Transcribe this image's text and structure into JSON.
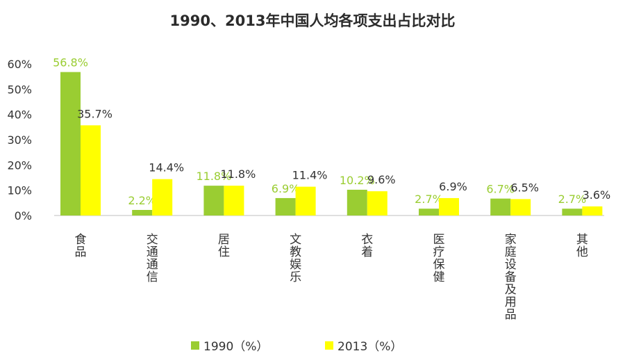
{
  "chart_data": {
    "type": "bar",
    "title": "1990、2013年中国人均各项支出占比对比",
    "categories": [
      "食品",
      "交通通信",
      "居住",
      "文教娱乐",
      "衣着",
      "医疗保健",
      "家庭设备及用品",
      "其他"
    ],
    "series": [
      {
        "name": "1990（%）",
        "color": "#9ACD32",
        "label_color": "#9ACD32",
        "values": [
          56.8,
          2.2,
          11.8,
          6.9,
          10.2,
          2.7,
          6.7,
          2.7
        ],
        "labels": [
          "56.8%",
          "2.2%",
          "11.8%",
          "6.9%",
          "10.2%",
          "2.7%",
          "6.7%",
          "2.7%"
        ]
      },
      {
        "name": "2013（%）",
        "color": "#FFFF00",
        "label_color": "#333333",
        "values": [
          35.7,
          14.4,
          11.8,
          11.4,
          9.6,
          6.9,
          6.5,
          3.6
        ],
        "labels": [
          "35.7%",
          "14.4%",
          "11.8%",
          "11.4%",
          "9.6%",
          "6.9%",
          "6.5%",
          "3.6%"
        ]
      }
    ],
    "yticks": [
      "0%",
      "10%",
      "20%",
      "30%",
      "40%",
      "50%",
      "60%"
    ],
    "ylim": [
      0,
      60
    ],
    "xlabel": "",
    "ylabel": "",
    "grid": false,
    "legend_position": "bottom"
  }
}
